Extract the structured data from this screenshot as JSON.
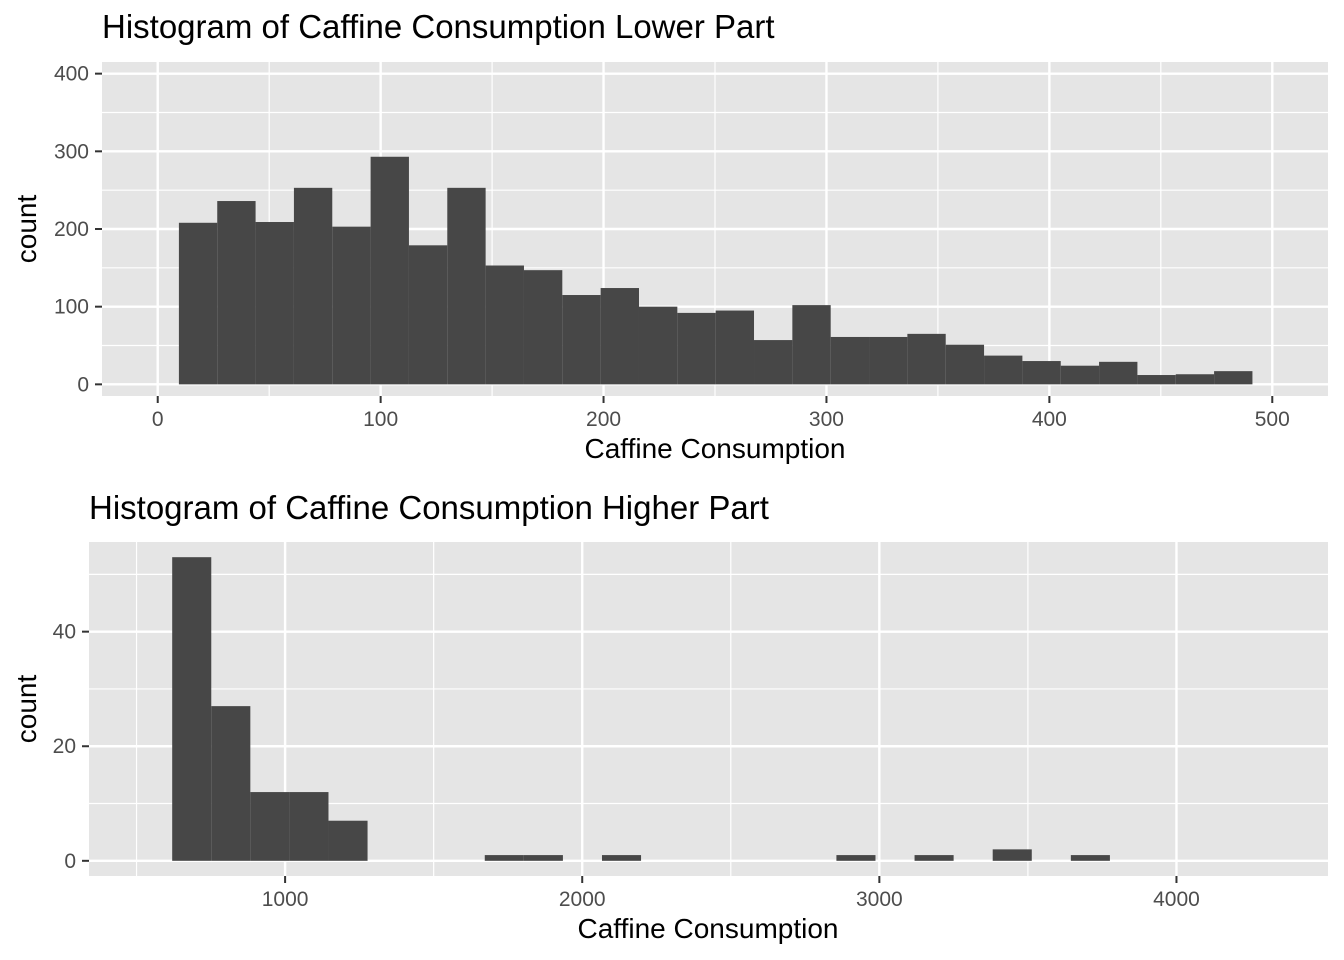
{
  "colors": {
    "panel_background": "#e5e5e5",
    "grid_major": "#ffffff",
    "bar_fill": "#474747",
    "tick_color": "#333333",
    "tick_label": "#4d4d4d"
  },
  "chart_data": [
    {
      "type": "bar",
      "title": "Histogram of Caffine Consumption Lower Part",
      "xlabel": "Caffine Consumption",
      "ylabel": "count",
      "xlim": [
        -25,
        525
      ],
      "ylim": [
        -15,
        415
      ],
      "x_ticks": [
        0,
        100,
        200,
        300,
        400,
        500
      ],
      "y_ticks": [
        0,
        100,
        200,
        300,
        400
      ],
      "x_tick_labels": [
        "0",
        "100",
        "200",
        "300",
        "400",
        "500"
      ],
      "y_tick_labels": [
        "0",
        "100",
        "200",
        "300",
        "400"
      ],
      "grid": true,
      "bin_width": 17.2,
      "bins": [
        {
          "x0": 9.5,
          "x1": 26.7,
          "count": 208
        },
        {
          "x0": 26.7,
          "x1": 43.9,
          "count": 236
        },
        {
          "x0": 43.9,
          "x1": 61.1,
          "count": 209
        },
        {
          "x0": 61.1,
          "x1": 78.3,
          "count": 253
        },
        {
          "x0": 78.3,
          "x1": 95.5,
          "count": 203
        },
        {
          "x0": 95.5,
          "x1": 112.7,
          "count": 293
        },
        {
          "x0": 112.7,
          "x1": 129.9,
          "count": 179
        },
        {
          "x0": 129.9,
          "x1": 147.1,
          "count": 253
        },
        {
          "x0": 147.1,
          "x1": 164.3,
          "count": 153
        },
        {
          "x0": 164.3,
          "x1": 181.5,
          "count": 147
        },
        {
          "x0": 181.5,
          "x1": 198.7,
          "count": 115
        },
        {
          "x0": 198.7,
          "x1": 215.9,
          "count": 124
        },
        {
          "x0": 215.9,
          "x1": 233.1,
          "count": 100
        },
        {
          "x0": 233.1,
          "x1": 250.3,
          "count": 92
        },
        {
          "x0": 250.3,
          "x1": 267.5,
          "count": 95
        },
        {
          "x0": 267.5,
          "x1": 284.7,
          "count": 57
        },
        {
          "x0": 284.7,
          "x1": 301.9,
          "count": 102
        },
        {
          "x0": 301.9,
          "x1": 319.1,
          "count": 61
        },
        {
          "x0": 319.1,
          "x1": 336.3,
          "count": 61
        },
        {
          "x0": 336.3,
          "x1": 353.5,
          "count": 65
        },
        {
          "x0": 353.5,
          "x1": 370.7,
          "count": 51
        },
        {
          "x0": 370.7,
          "x1": 387.9,
          "count": 37
        },
        {
          "x0": 387.9,
          "x1": 405.1,
          "count": 30
        },
        {
          "x0": 405.1,
          "x1": 422.3,
          "count": 24
        },
        {
          "x0": 422.3,
          "x1": 439.5,
          "count": 29
        },
        {
          "x0": 439.5,
          "x1": 456.7,
          "count": 12
        },
        {
          "x0": 456.7,
          "x1": 473.9,
          "count": 13
        },
        {
          "x0": 473.9,
          "x1": 491.1,
          "count": 17
        }
      ]
    },
    {
      "type": "bar",
      "title": "Histogram of Caffine Consumption Higher Part",
      "xlabel": "Caffine Consumption",
      "ylabel": "count",
      "xlim": [
        340,
        4510
      ],
      "ylim": [
        -2.65,
        55.65
      ],
      "x_ticks": [
        1000,
        2000,
        3000,
        4000
      ],
      "x_minor_ticks": [
        500,
        1500,
        2500,
        3500
      ],
      "y_ticks": [
        0,
        20,
        40
      ],
      "y_minor_ticks": [
        10,
        30,
        50
      ],
      "x_tick_labels": [
        "1000",
        "2000",
        "3000",
        "4000"
      ],
      "y_tick_labels": [
        "0",
        "20",
        "40"
      ],
      "grid": true,
      "bin_width": 131.5,
      "bins": [
        {
          "x0": 620,
          "x1": 751.5,
          "count": 53
        },
        {
          "x0": 751.5,
          "x1": 883,
          "count": 27
        },
        {
          "x0": 883,
          "x1": 1014.5,
          "count": 12
        },
        {
          "x0": 1014.5,
          "x1": 1146,
          "count": 12
        },
        {
          "x0": 1146,
          "x1": 1277.5,
          "count": 7
        },
        {
          "x0": 1277.5,
          "x1": 1409,
          "count": 0
        },
        {
          "x0": 1409,
          "x1": 1540.5,
          "count": 0
        },
        {
          "x0": 1540.5,
          "x1": 1672,
          "count": 0
        },
        {
          "x0": 1672,
          "x1": 1803.5,
          "count": 1
        },
        {
          "x0": 1803.5,
          "x1": 1935,
          "count": 1
        },
        {
          "x0": 1935,
          "x1": 2066.5,
          "count": 0
        },
        {
          "x0": 2066.5,
          "x1": 2198,
          "count": 1
        },
        {
          "x0": 2198,
          "x1": 2329.5,
          "count": 0
        },
        {
          "x0": 2329.5,
          "x1": 2461,
          "count": 0
        },
        {
          "x0": 2461,
          "x1": 2592.5,
          "count": 0
        },
        {
          "x0": 2592.5,
          "x1": 2724,
          "count": 0
        },
        {
          "x0": 2724,
          "x1": 2855.5,
          "count": 0
        },
        {
          "x0": 2855.5,
          "x1": 2987,
          "count": 1
        },
        {
          "x0": 2987,
          "x1": 3118.5,
          "count": 0
        },
        {
          "x0": 3118.5,
          "x1": 3250,
          "count": 1
        },
        {
          "x0": 3250,
          "x1": 3381.5,
          "count": 0
        },
        {
          "x0": 3381.5,
          "x1": 3513,
          "count": 2
        },
        {
          "x0": 3513,
          "x1": 3644.5,
          "count": 0
        },
        {
          "x0": 3644.5,
          "x1": 3776,
          "count": 1
        }
      ]
    }
  ]
}
